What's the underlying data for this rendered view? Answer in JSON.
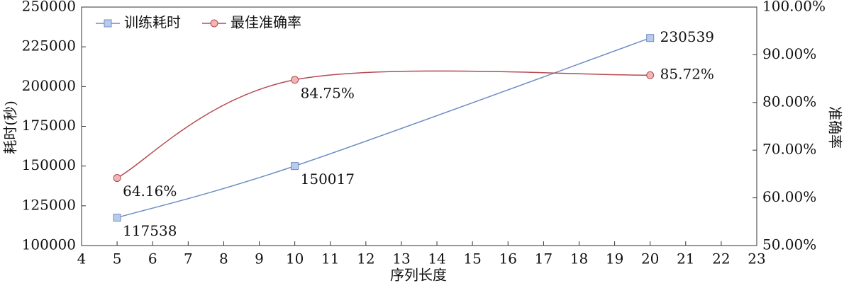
{
  "chart_data": {
    "type": "line",
    "x": [
      5,
      10,
      20
    ],
    "xlabel": "序列长度",
    "ylabel": "耗时(秒)",
    "y2label": "准确率",
    "xlim": [
      4,
      23
    ],
    "xticks": [
      4,
      5,
      6,
      7,
      8,
      9,
      10,
      11,
      12,
      13,
      14,
      15,
      16,
      17,
      18,
      19,
      20,
      21,
      22,
      23
    ],
    "ylim": [
      100000,
      250000
    ],
    "yticks": [
      100000,
      125000,
      150000,
      175000,
      200000,
      225000,
      250000
    ],
    "y2lim": [
      50,
      100
    ],
    "y2ticks": [
      {
        "value": 50,
        "label": "50.00%"
      },
      {
        "value": 60,
        "label": "60.00%"
      },
      {
        "value": 70,
        "label": "70.00%"
      },
      {
        "value": 80,
        "label": "80.00%"
      },
      {
        "value": 90,
        "label": "90.00%"
      },
      {
        "value": 100,
        "label": "100.00%"
      }
    ],
    "smooth": true,
    "legend": "upper left",
    "series": [
      {
        "name": "训练耗时",
        "color": "#6f8cc6",
        "marker": "square",
        "marker_fill": "#b9cbeb",
        "values": [
          117538,
          150017,
          230539
        ]
      },
      {
        "name": "最佳准确率",
        "color": "#b54a50",
        "marker": "circle",
        "marker_fill": "#f0b5b5",
        "axis": "y2",
        "values": [
          64.16,
          84.75,
          85.72
        ],
        "value_labels": [
          "64.16%",
          "84.75%",
          "85.72%"
        ]
      }
    ]
  }
}
